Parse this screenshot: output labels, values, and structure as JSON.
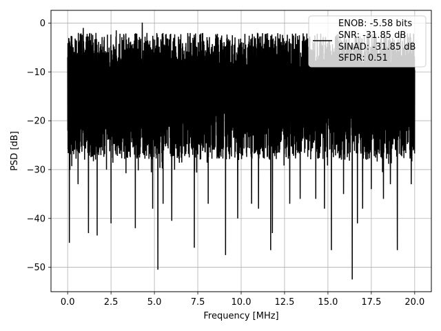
{
  "chart_data": {
    "type": "line",
    "title": "",
    "xlabel": "Frequency [MHz]",
    "ylabel": "PSD [dB]",
    "xlim": [
      -0.96,
      20.96
    ],
    "ylim": [
      -55,
      2.6
    ],
    "x_ticks": [
      0.0,
      2.5,
      5.0,
      7.5,
      10.0,
      12.5,
      15.0,
      17.5,
      20.0
    ],
    "x_tick_labels": [
      "0.0",
      "2.5",
      "5.0",
      "7.5",
      "10.0",
      "12.5",
      "15.0",
      "17.5",
      "20.0"
    ],
    "y_ticks": [
      0,
      -10,
      -20,
      -30,
      -40,
      -50
    ],
    "y_tick_labels": [
      "0",
      "−10",
      "−20",
      "−30",
      "−40",
      "−50"
    ],
    "grid": true,
    "legend_position": "top-right",
    "series": [
      {
        "name": "ENOB: -5.58 bits\nSNR: -31.85 dB\nSINAD: -31.85 dB\nSFDR: 0.51",
        "color": "#000000",
        "description_x_range": [
          0,
          20
        ],
        "noise_band_db": [
          -28,
          -2
        ],
        "notable_dips": [
          {
            "x": 0.1,
            "y": -45
          },
          {
            "x": 0.6,
            "y": -33
          },
          {
            "x": 1.2,
            "y": -43
          },
          {
            "x": 1.7,
            "y": -43.5
          },
          {
            "x": 2.5,
            "y": -41
          },
          {
            "x": 3.9,
            "y": -42
          },
          {
            "x": 4.9,
            "y": -38
          },
          {
            "x": 5.2,
            "y": -50.5
          },
          {
            "x": 5.5,
            "y": -37
          },
          {
            "x": 6.0,
            "y": -40.5
          },
          {
            "x": 7.3,
            "y": -46
          },
          {
            "x": 8.1,
            "y": -37
          },
          {
            "x": 9.1,
            "y": -47.5
          },
          {
            "x": 9.8,
            "y": -40
          },
          {
            "x": 10.6,
            "y": -37
          },
          {
            "x": 11.0,
            "y": -38
          },
          {
            "x": 11.7,
            "y": -46.5
          },
          {
            "x": 11.8,
            "y": -43
          },
          {
            "x": 12.8,
            "y": -37
          },
          {
            "x": 13.4,
            "y": -36
          },
          {
            "x": 14.3,
            "y": -36
          },
          {
            "x": 14.8,
            "y": -38
          },
          {
            "x": 15.2,
            "y": -46.5
          },
          {
            "x": 15.9,
            "y": -35
          },
          {
            "x": 16.4,
            "y": -52.5
          },
          {
            "x": 16.7,
            "y": -41
          },
          {
            "x": 17.0,
            "y": -38
          },
          {
            "x": 17.5,
            "y": -34
          },
          {
            "x": 18.2,
            "y": -36
          },
          {
            "x": 18.6,
            "y": -33
          },
          {
            "x": 19.0,
            "y": -46.5
          },
          {
            "x": 19.8,
            "y": -33
          }
        ],
        "peaks": [
          {
            "x": 4.3,
            "y": 0.1
          },
          {
            "x": 2.8,
            "y": -1.5
          },
          {
            "x": 0.9,
            "y": -1
          }
        ]
      }
    ],
    "legend_lines": [
      "ENOB: -5.58 bits",
      "SNR: -31.85 dB",
      "SINAD: -31.85 dB",
      "SFDR: 0.51"
    ]
  }
}
